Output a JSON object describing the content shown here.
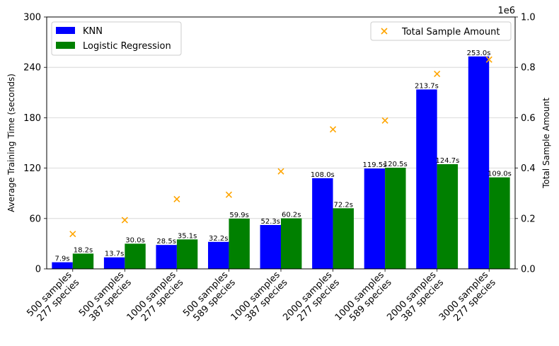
{
  "chart_data": {
    "type": "bar",
    "categories": [
      [
        "500 samples",
        "277 species"
      ],
      [
        "500 samples",
        "387 species"
      ],
      [
        "1000 samples",
        "277 species"
      ],
      [
        "500 samples",
        "589 species"
      ],
      [
        "1000 samples",
        "387 species"
      ],
      [
        "2000 samples",
        "277 species"
      ],
      [
        "1000 samples",
        "589 species"
      ],
      [
        "2000 samples",
        "387 species"
      ],
      [
        "3000 samples",
        "277 species"
      ]
    ],
    "series": [
      {
        "name": "KNN",
        "color": "#0000ff",
        "axis": "left",
        "values": [
          7.9,
          13.7,
          28.5,
          32.2,
          52.3,
          108.0,
          119.5,
          213.7,
          253.0
        ],
        "labels": [
          "7.9s",
          "13.7s",
          "28.5s",
          "32.2s",
          "52.3s",
          "108.0s",
          "119.5s",
          "213.7s",
          "253.0s"
        ]
      },
      {
        "name": "Logistic Regression",
        "color": "#008000",
        "axis": "left",
        "values": [
          18.2,
          30.0,
          35.1,
          59.9,
          60.2,
          72.2,
          120.5,
          124.7,
          109.0
        ],
        "labels": [
          "18.2s",
          "30.0s",
          "35.1s",
          "59.9s",
          "60.2s",
          "72.2s",
          "120.5s",
          "124.7s",
          "109.0s"
        ]
      },
      {
        "name": "Total Sample Amount",
        "color": "#ffa500",
        "axis": "right",
        "marker": "x",
        "values": [
          138500,
          193500,
          277000,
          294500,
          387000,
          554000,
          589000,
          774000,
          831000
        ]
      }
    ],
    "ylabel": "Average Training Time (seconds)",
    "ylim": [
      0,
      300
    ],
    "yticks": [
      0,
      60,
      120,
      180,
      240,
      300
    ],
    "ylabel_right": "Total Sample Amount",
    "ylim_right": [
      0,
      1000000
    ],
    "yticks_right": [
      "0.0",
      "0.2",
      "0.4",
      "0.6",
      "0.8",
      "1.0"
    ],
    "right_offset_text": "1e6",
    "grid": "horizontal",
    "legend_left_placement": "upper-left",
    "legend_right_placement": "upper-right"
  }
}
